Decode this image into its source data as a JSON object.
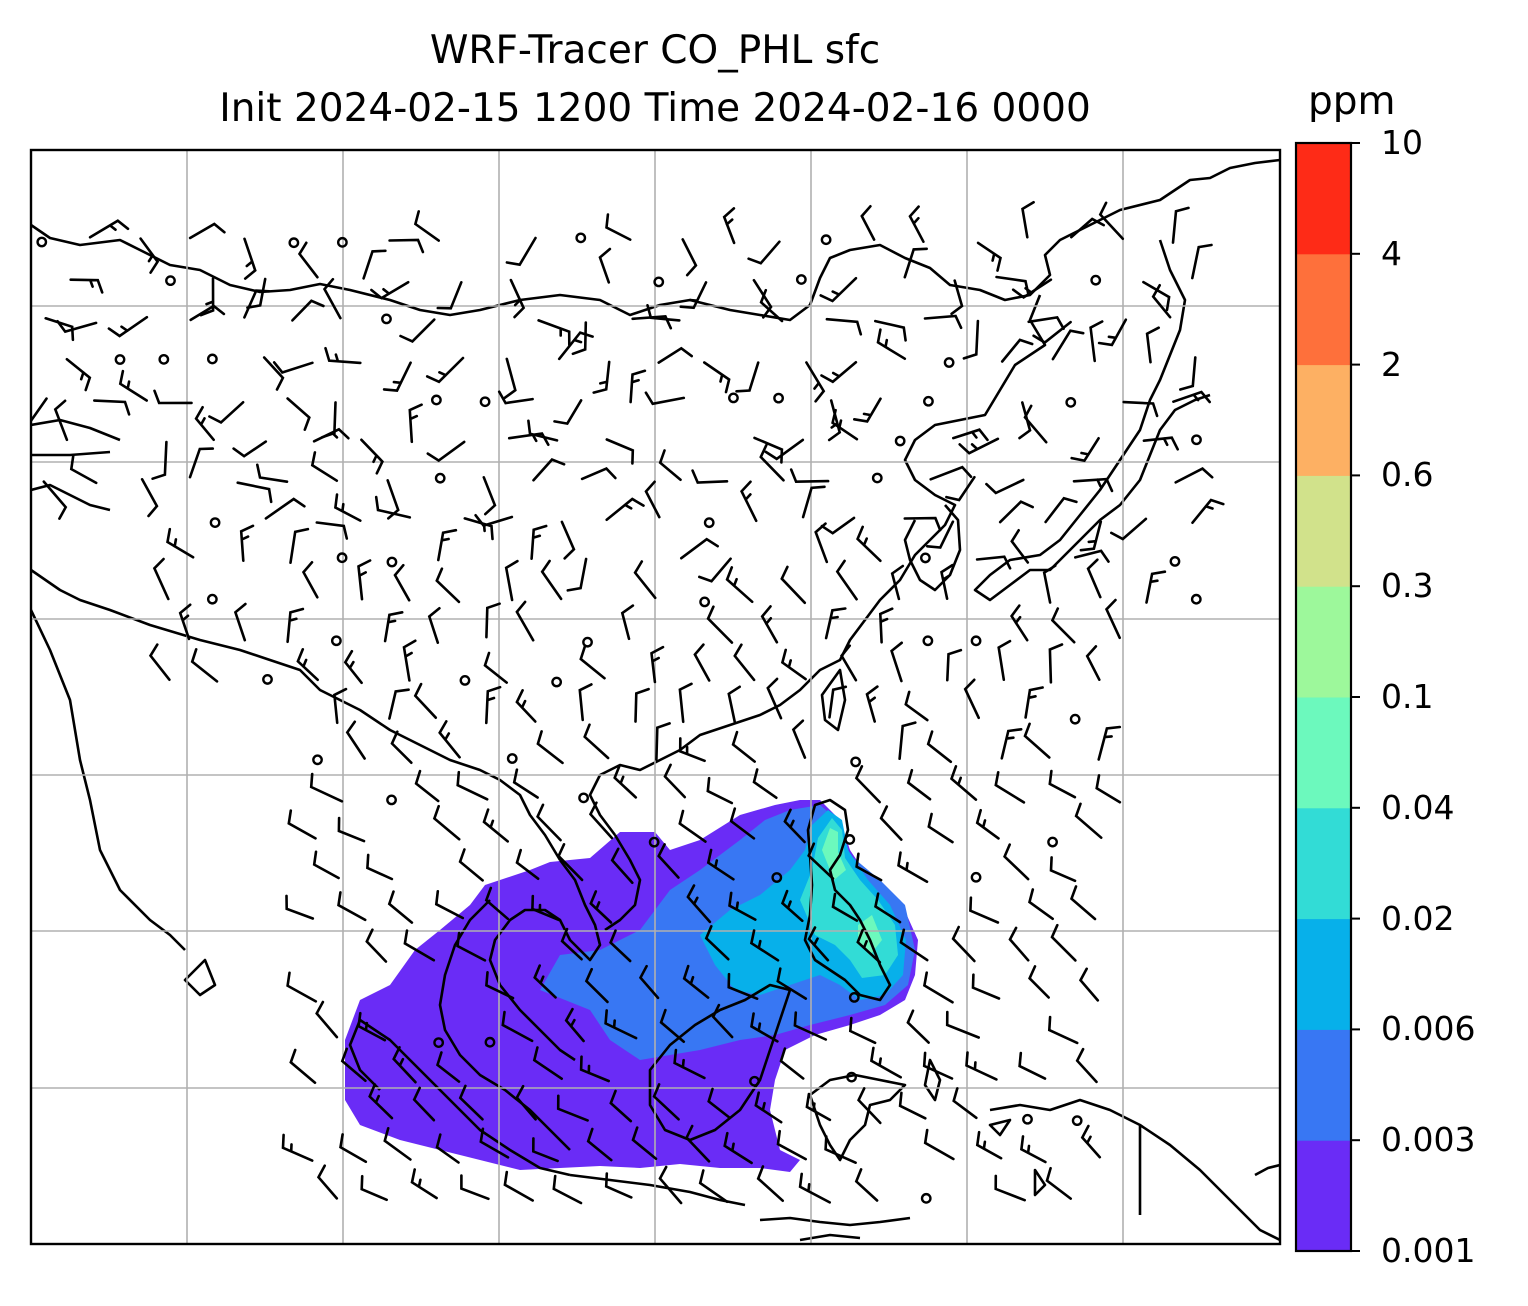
{
  "title": {
    "line1": "WRF-Tracer CO_PHL sfc",
    "line2": "Init 2024-02-15 1200 Time 2024-02-16 0000"
  },
  "colorbar": {
    "unit": "ppm",
    "ticks": [
      "0.001",
      "0.003",
      "0.006",
      "0.02",
      "0.04",
      "0.1",
      "0.3",
      "0.6",
      "2",
      "4",
      "10"
    ],
    "colors": [
      "#6a2cf6",
      "#3877f3",
      "#07b0ea",
      "#32dcd6",
      "#6cf9bd",
      "#9df89b",
      "#d1e28b",
      "#fdb063",
      "#fe703b",
      "#fe2b17"
    ]
  },
  "map": {
    "region": "East and Southeast Asia",
    "plume": {
      "source": "Philippines",
      "dominant_band": "0.001-0.003 ppm",
      "peak_band": "0.02-0.04 ppm"
    },
    "overlays": [
      "coastlines",
      "gridlines",
      "wind-barbs",
      "calm-circles"
    ]
  }
}
